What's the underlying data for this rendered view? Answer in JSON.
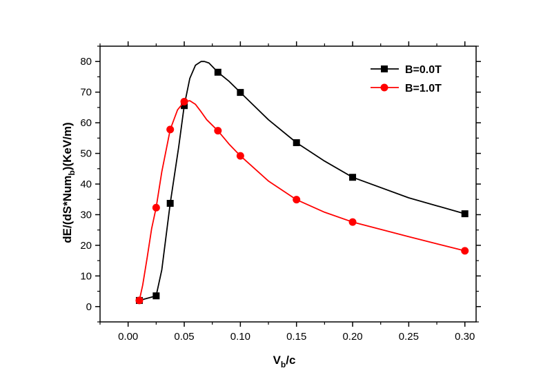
{
  "chart_data": {
    "type": "line",
    "title": "",
    "xlabel": {
      "main": "V",
      "sub": "b",
      "rest": "/c"
    },
    "ylabel": {
      "pre": "dE/(dS*Num",
      "sub": "b",
      "post": ")(KeV/m)"
    },
    "xlim": [
      -0.025,
      0.31
    ],
    "ylim": [
      -5,
      85
    ],
    "x_ticks": [
      0.0,
      0.05,
      0.1,
      0.15,
      0.2,
      0.25,
      0.3
    ],
    "x_tick_labels": [
      "0.00",
      "0.05",
      "0.10",
      "0.15",
      "0.20",
      "0.25",
      "0.30"
    ],
    "y_ticks": [
      0,
      10,
      20,
      30,
      40,
      50,
      60,
      70,
      80
    ],
    "y_tick_labels": [
      "0",
      "10",
      "20",
      "30",
      "40",
      "50",
      "60",
      "70",
      "80"
    ],
    "grid": false,
    "legend_position": "top-right",
    "series": [
      {
        "name": "B=0.0T",
        "color": "#000000",
        "marker": "square",
        "x": [
          0.01,
          0.025,
          0.0375,
          0.05,
          0.08,
          0.1,
          0.15,
          0.2,
          0.3
        ],
        "y": [
          2.0,
          3.5,
          33.7,
          65.6,
          76.5,
          69.9,
          53.5,
          42.2,
          30.3
        ],
        "curve": {
          "x": [
            0.01,
            0.025,
            0.03,
            0.0375,
            0.045,
            0.05,
            0.055,
            0.06,
            0.065,
            0.068,
            0.072,
            0.08,
            0.09,
            0.1,
            0.125,
            0.15,
            0.175,
            0.2,
            0.25,
            0.3
          ],
          "y": [
            2.0,
            3.5,
            12.0,
            33.7,
            52.0,
            65.6,
            74.5,
            78.8,
            80.0,
            80.0,
            79.5,
            76.5,
            73.5,
            69.9,
            61.0,
            53.5,
            47.5,
            42.2,
            35.5,
            30.3
          ]
        }
      },
      {
        "name": "B=1.0T",
        "color": "#ff0000",
        "marker": "circle",
        "x": [
          0.01,
          0.025,
          0.0375,
          0.05,
          0.08,
          0.1,
          0.15,
          0.2,
          0.3
        ],
        "y": [
          2.0,
          32.3,
          57.8,
          66.9,
          57.4,
          49.2,
          34.9,
          27.6,
          18.2
        ],
        "curve": {
          "x": [
            0.01,
            0.013,
            0.017,
            0.021,
            0.025,
            0.03,
            0.0375,
            0.044,
            0.05,
            0.055,
            0.06,
            0.065,
            0.07,
            0.08,
            0.09,
            0.1,
            0.125,
            0.15,
            0.175,
            0.2,
            0.25,
            0.3
          ],
          "y": [
            2.0,
            7.0,
            16.0,
            25.5,
            32.3,
            44.0,
            57.8,
            64.2,
            66.9,
            67.2,
            66.0,
            63.6,
            61.0,
            57.4,
            53.0,
            49.2,
            41.0,
            34.9,
            30.8,
            27.6,
            22.8,
            18.2
          ]
        }
      }
    ]
  }
}
